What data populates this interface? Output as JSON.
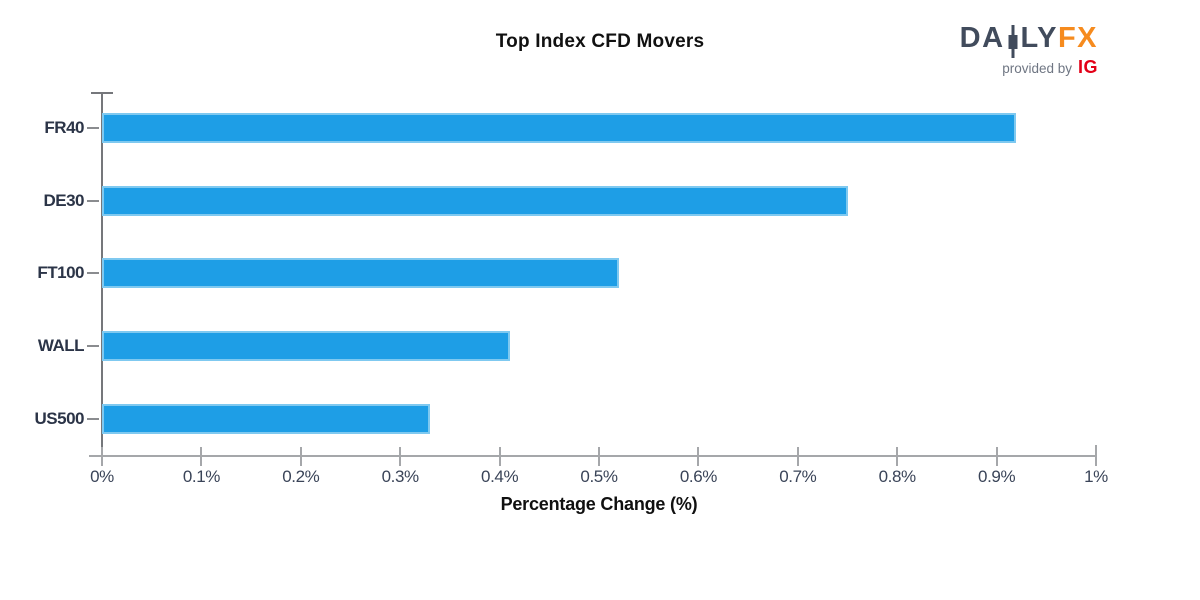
{
  "header": {
    "title": "Top Index CFD Movers"
  },
  "logo": {
    "word_part1": "DA",
    "word_part2": "LY",
    "word_part3": "FX",
    "tagline": "provided by",
    "brand": "IG",
    "slate_color": "#414B5C",
    "orange_color": "#F68B1E",
    "brand_red_color": "#E30017"
  },
  "chart_data": {
    "type": "bar",
    "orientation": "horizontal",
    "title": "Top Index CFD Movers",
    "categories": [
      "FR40",
      "DE30",
      "FT100",
      "WALL",
      "US500"
    ],
    "values": [
      0.92,
      0.75,
      0.52,
      0.41,
      0.33
    ],
    "value_unit": "%",
    "xlabel": "Percentage Change (%)",
    "xlim": [
      0,
      1
    ],
    "xticks": [
      "0%",
      "0.1%",
      "0.2%",
      "0.3%",
      "0.4%",
      "0.5%",
      "0.6%",
      "0.7%",
      "0.8%",
      "0.9%",
      "1%"
    ],
    "grid": false,
    "legend": "none",
    "bar_color": "#1E9EE6",
    "bar_edge_color": "#7FC9F0"
  }
}
